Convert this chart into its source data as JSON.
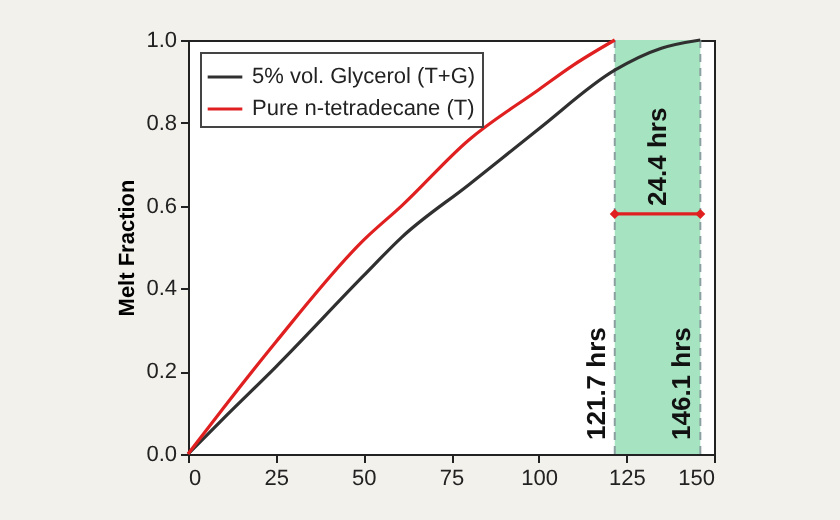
{
  "chart_data": {
    "type": "line",
    "ylabel": "Melt Fraction",
    "xlim": [
      0,
      150
    ],
    "xticks": [
      0,
      25,
      50,
      75,
      100,
      125,
      150
    ],
    "ylim": [
      0,
      1
    ],
    "yticks": [
      {
        "value": 0,
        "label": "0.0"
      },
      0.2,
      0.4,
      0.6,
      0.8,
      {
        "value": 1,
        "label": "1.0"
      }
    ],
    "grid": false,
    "legend": "top left",
    "line_style": "solid",
    "marker": "none",
    "series": [
      {
        "name": "5% vol. Glycerol (T+G)",
        "color": "#303030",
        "x": [
          0,
          10,
          25,
          50,
          61,
          80,
          100,
          121.7,
          135,
          146.1
        ],
        "values": [
          0,
          0.085,
          0.21,
          0.43,
          0.524,
          0.65,
          0.785,
          0.927,
          0.98,
          1
        ]
      },
      {
        "name": "Pure n-tetradecane (T)",
        "color": "#e02020",
        "x": [
          0,
          10,
          25,
          50,
          61,
          80,
          100,
          110,
          121.7
        ],
        "values": [
          0,
          0.11,
          0.27,
          0.516,
          0.6,
          0.758,
          0.88,
          0.94,
          1
        ]
      },
      {
        "color": "#e02020",
        "marker": "diamond",
        "x": [
          121.7,
          146.1
        ],
        "values": [
          0.58,
          0.58
        ]
      }
    ],
    "bands": [
      {
        "axis": "x",
        "from": 121.7,
        "to": 146.1,
        "color": "#a6e3c0"
      }
    ],
    "ref_lines": [
      {
        "axis": "x",
        "value": 121.7,
        "label": "121.7 hrs",
        "line_style": "dashed",
        "color": "#8aa0a0"
      },
      {
        "axis": "x",
        "value": 146.1,
        "label": "146.1 hrs",
        "line_style": "dashed",
        "color": "#8aa0a0"
      }
    ],
    "annotations": [
      {
        "text": "24.4 hrs",
        "x": 133.9,
        "y": 0.58
      }
    ]
  }
}
